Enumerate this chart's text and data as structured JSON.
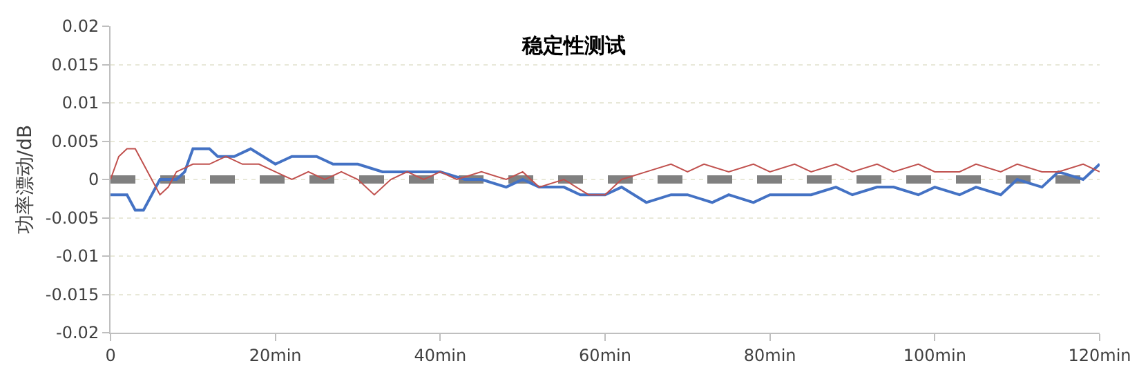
{
  "chart_data": {
    "type": "line",
    "title": "稳定性测试",
    "ylabel": "功率漂动/dB",
    "xlim": [
      0,
      120
    ],
    "ylim": [
      -0.02,
      0.02
    ],
    "xticks": [
      0,
      {
        "value": 20,
        "label": "20min"
      },
      {
        "value": 40,
        "label": "40min"
      },
      {
        "value": 60,
        "label": "60min"
      },
      {
        "value": 80,
        "label": "80min"
      },
      {
        "value": 100,
        "label": "100min"
      },
      {
        "value": 120,
        "label": "120min"
      }
    ],
    "yticks": [
      -0.02,
      -0.015,
      -0.01,
      -0.005,
      0,
      0.005,
      0.01,
      0.015,
      0.02
    ],
    "grid": "y",
    "marker": "none",
    "ref_lines": [
      {
        "axis": "y",
        "value": 0,
        "color": "#808080",
        "line_style": "dashed"
      }
    ],
    "series": [
      {
        "color": "#4472c4",
        "x": [
          0,
          2,
          3,
          4,
          5,
          6,
          8,
          9,
          10,
          12,
          13,
          15,
          17,
          20,
          22,
          25,
          27,
          30,
          33,
          35,
          38,
          40,
          43,
          45,
          48,
          50,
          52,
          55,
          57,
          60,
          62,
          65,
          68,
          70,
          73,
          75,
          78,
          80,
          83,
          85,
          88,
          90,
          93,
          95,
          98,
          100,
          103,
          105,
          108,
          110,
          113,
          115,
          118,
          120
        ],
        "values": [
          -0.002,
          -0.002,
          -0.004,
          -0.004,
          -0.002,
          0,
          0,
          0.001,
          0.004,
          0.004,
          0.003,
          0.003,
          0.004,
          0.002,
          0.003,
          0.003,
          0.002,
          0.002,
          0.001,
          0.001,
          0.001,
          0.001,
          0,
          0,
          -0.001,
          0,
          -0.001,
          -0.001,
          -0.002,
          -0.002,
          -0.001,
          -0.003,
          -0.002,
          -0.002,
          -0.003,
          -0.002,
          -0.003,
          -0.002,
          -0.002,
          -0.002,
          -0.001,
          -0.002,
          -0.001,
          -0.001,
          -0.002,
          -0.001,
          -0.002,
          -0.001,
          -0.002,
          0,
          -0.001,
          0.001,
          0,
          0.002
        ]
      },
      {
        "color": "#c0504d",
        "x": [
          0,
          1,
          2,
          3,
          4,
          5,
          6,
          7,
          8,
          10,
          12,
          14,
          16,
          18,
          20,
          22,
          24,
          26,
          28,
          30,
          32,
          34,
          36,
          38,
          40,
          42,
          45,
          48,
          50,
          52,
          55,
          58,
          60,
          62,
          65,
          68,
          70,
          72,
          75,
          78,
          80,
          83,
          85,
          88,
          90,
          93,
          95,
          98,
          100,
          103,
          105,
          108,
          110,
          113,
          115,
          118,
          120
        ],
        "values": [
          0,
          0.003,
          0.004,
          0.004,
          0.002,
          0,
          -0.002,
          -0.001,
          0.001,
          0.002,
          0.002,
          0.003,
          0.002,
          0.002,
          0.001,
          0,
          0.001,
          0,
          0.001,
          0,
          -0.002,
          0,
          0.001,
          0,
          0.001,
          0,
          0.001,
          0,
          0.001,
          -0.001,
          0,
          -0.002,
          -0.002,
          0,
          0.001,
          0.002,
          0.001,
          0.002,
          0.001,
          0.002,
          0.001,
          0.002,
          0.001,
          0.002,
          0.001,
          0.002,
          0.001,
          0.002,
          0.001,
          0.001,
          0.002,
          0.001,
          0.002,
          0.001,
          0.001,
          0.002,
          0.001
        ]
      }
    ]
  }
}
